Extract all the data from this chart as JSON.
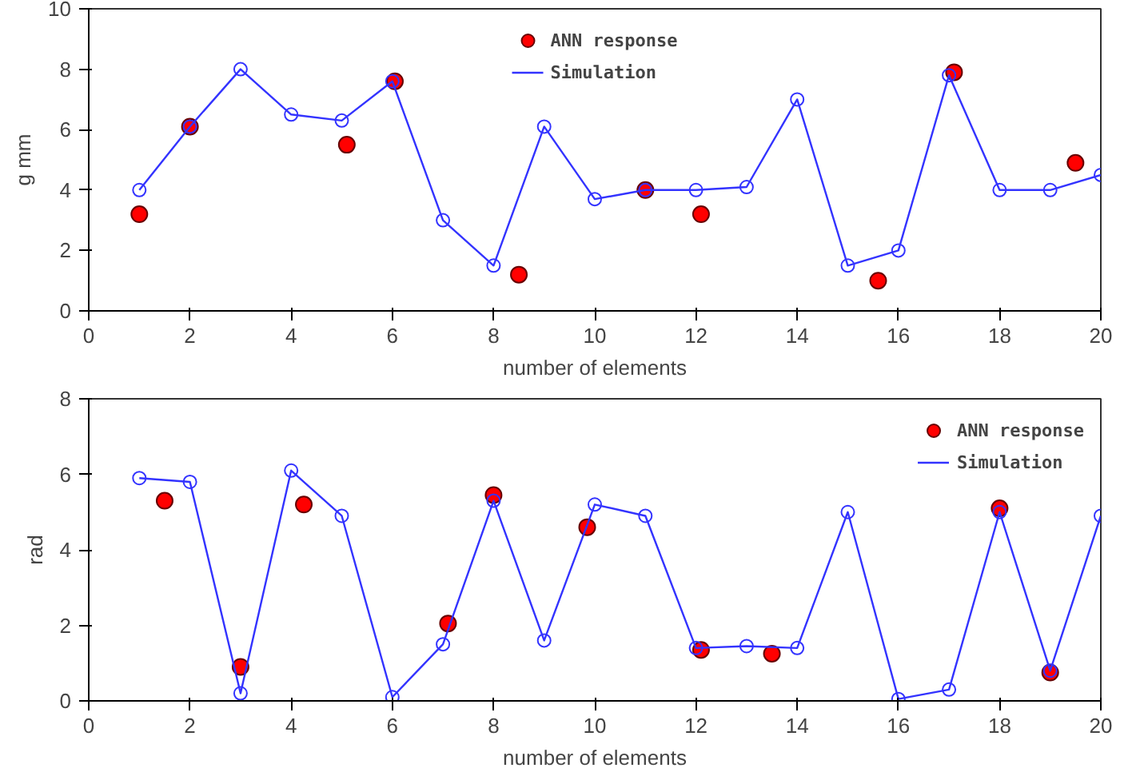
{
  "chart_data": [
    {
      "type": "line",
      "xlabel": "number of elements",
      "ylabel": "g mm",
      "xlim": [
        0,
        20
      ],
      "ylim": [
        0,
        10
      ],
      "xticks": [
        0,
        2,
        4,
        6,
        8,
        10,
        12,
        14,
        16,
        18,
        20
      ],
      "yticks": [
        0,
        2,
        4,
        6,
        8,
        10
      ],
      "grid": false,
      "legend": "top",
      "series": [
        {
          "name": "ANN response",
          "type": "scatter",
          "marker": "circle",
          "color": "#ff0000",
          "x": [
            1,
            2,
            5.1,
            6.05,
            8.5,
            11,
            12.1,
            15.6,
            17.1,
            19.5
          ],
          "values": [
            3.2,
            6.1,
            5.5,
            7.6,
            1.2,
            4.0,
            3.2,
            1.0,
            7.9,
            4.9
          ]
        },
        {
          "name": "Simulation",
          "marker": "circle",
          "color": "#3333ff",
          "x": [
            1,
            2,
            3,
            4,
            5,
            6,
            7,
            8,
            9,
            10,
            11,
            12,
            13,
            14,
            15,
            16,
            17,
            18,
            19,
            20
          ],
          "values": [
            4.0,
            6.1,
            8.0,
            6.5,
            6.3,
            7.6,
            3.0,
            1.5,
            6.1,
            3.7,
            4.0,
            4.0,
            4.1,
            7.0,
            1.5,
            2.0,
            7.8,
            4.0,
            4.0,
            4.5
          ]
        }
      ]
    },
    {
      "type": "line",
      "xlabel": "number of elements",
      "ylabel": "rad",
      "xlim": [
        0,
        20
      ],
      "ylim": [
        0,
        8
      ],
      "xticks": [
        0,
        2,
        4,
        6,
        8,
        10,
        12,
        14,
        16,
        18,
        20
      ],
      "yticks": [
        0,
        2,
        4,
        6,
        8
      ],
      "grid": false,
      "legend": "top right",
      "series": [
        {
          "name": "ANN response",
          "type": "scatter",
          "marker": "circle",
          "color": "#ff0000",
          "x": [
            1.5,
            3,
            4.25,
            7.1,
            8,
            9.85,
            12.1,
            13.5,
            18,
            19
          ],
          "values": [
            5.3,
            0.9,
            5.2,
            2.05,
            5.45,
            4.6,
            1.35,
            1.25,
            5.1,
            0.75
          ]
        },
        {
          "name": "Simulation",
          "marker": "circle",
          "color": "#3333ff",
          "x": [
            1,
            2,
            3,
            4,
            5,
            6,
            7,
            8,
            9,
            10,
            11,
            12,
            13,
            14,
            15,
            16,
            17,
            18,
            19,
            20
          ],
          "values": [
            5.9,
            5.8,
            0.2,
            6.1,
            4.9,
            0.1,
            1.5,
            5.3,
            1.6,
            5.2,
            4.9,
            1.4,
            1.45,
            1.4,
            5.0,
            0.05,
            0.3,
            5.0,
            0.8,
            4.9
          ]
        }
      ]
    }
  ]
}
